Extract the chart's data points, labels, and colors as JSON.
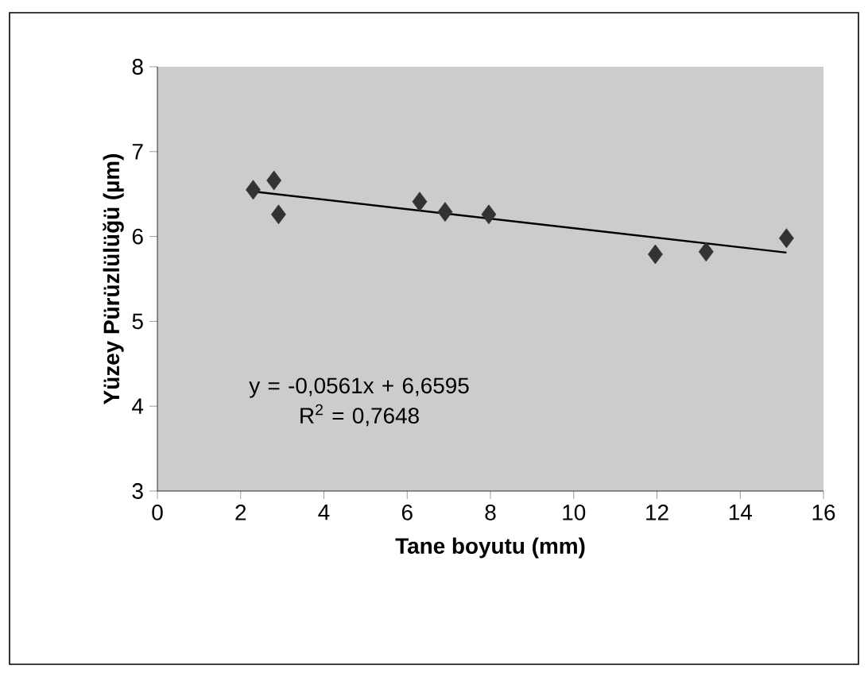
{
  "chart_data": {
    "type": "scatter",
    "xlabel": "Tane boyutu (mm)",
    "ylabel": "Yüzey Pürüzlülüğü (µm)",
    "annotations": [
      "y = -0,0561x + 6,6595",
      "R$^{2}$ = 0,7648"
    ],
    "series": [
      {
        "color": "#333333",
        "marker": "diamond",
        "x": [
          2.3,
          2.8,
          2.91,
          6.3,
          6.91,
          7.96,
          11.96,
          13.18,
          15.11
        ],
        "values": [
          6.55,
          6.66,
          6.26,
          6.41,
          6.29,
          6.26,
          5.79,
          5.82,
          5.98
        ]
      },
      {
        "type": "line",
        "color": "#000000",
        "marker": "none",
        "line_style": "solid",
        "x": [
          2.3,
          15.11
        ],
        "values": [
          6.53,
          5.81
        ]
      }
    ],
    "xlim": [
      0,
      16
    ],
    "ylim": [
      3,
      8
    ],
    "xticks": [
      0,
      2,
      4,
      6,
      8,
      10,
      12,
      14,
      16
    ],
    "yticks": [
      3,
      4,
      5,
      6,
      7,
      8
    ],
    "grid": false
  }
}
